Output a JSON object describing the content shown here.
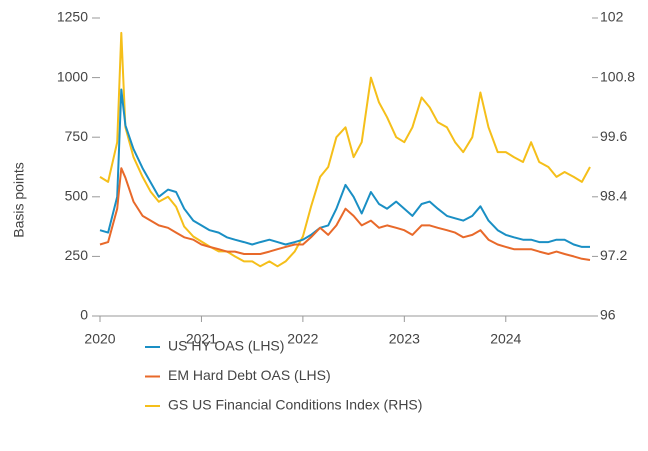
{
  "chart_data": {
    "type": "line",
    "ylabel": "Basis points",
    "x": [
      2020.0,
      2020.08,
      2020.17,
      2020.21,
      2020.25,
      2020.33,
      2020.42,
      2020.5,
      2020.58,
      2020.67,
      2020.75,
      2020.83,
      2020.92,
      2021.0,
      2021.08,
      2021.17,
      2021.25,
      2021.33,
      2021.42,
      2021.5,
      2021.58,
      2021.67,
      2021.75,
      2021.83,
      2021.92,
      2022.0,
      2022.08,
      2022.17,
      2022.25,
      2022.33,
      2022.42,
      2022.5,
      2022.58,
      2022.67,
      2022.75,
      2022.83,
      2022.92,
      2023.0,
      2023.08,
      2023.17,
      2023.25,
      2023.33,
      2023.42,
      2023.5,
      2023.58,
      2023.67,
      2023.75,
      2023.83,
      2023.92,
      2024.0,
      2024.08,
      2024.17,
      2024.25,
      2024.33,
      2024.42,
      2024.5,
      2024.58,
      2024.67,
      2024.75,
      2024.83
    ],
    "series": [
      {
        "name": "US HY OAS (LHS)",
        "color": "#1a8fc4",
        "values": [
          360,
          350,
          500,
          950,
          800,
          700,
          620,
          560,
          500,
          530,
          520,
          450,
          400,
          380,
          360,
          350,
          330,
          320,
          310,
          300,
          310,
          320,
          310,
          300,
          310,
          320,
          340,
          370,
          380,
          450,
          550,
          500,
          430,
          520,
          470,
          450,
          480,
          450,
          420,
          470,
          480,
          450,
          420,
          410,
          400,
          420,
          460,
          400,
          360,
          340,
          330,
          320,
          320,
          310,
          310,
          320,
          320,
          300,
          290,
          290
        ]
      },
      {
        "name": "EM Hard Debt OAS (LHS)",
        "color": "#e8692a",
        "values": [
          300,
          310,
          450,
          620,
          580,
          480,
          420,
          400,
          380,
          370,
          350,
          330,
          320,
          300,
          290,
          280,
          270,
          270,
          260,
          260,
          260,
          270,
          280,
          290,
          300,
          300,
          330,
          370,
          340,
          380,
          450,
          420,
          380,
          400,
          370,
          380,
          370,
          360,
          340,
          380,
          380,
          370,
          360,
          350,
          330,
          340,
          360,
          320,
          300,
          290,
          280,
          280,
          280,
          270,
          260,
          270,
          260,
          250,
          240,
          235
        ]
      },
      {
        "name": "GS US Financial Conditions Index (RHS)",
        "color": "#f5bf1a",
        "axis": "y2",
        "values": [
          98.8,
          98.7,
          99.5,
          101.7,
          99.8,
          99.2,
          98.8,
          98.5,
          98.3,
          98.4,
          98.2,
          97.8,
          97.6,
          97.5,
          97.4,
          97.3,
          97.3,
          97.2,
          97.1,
          97.1,
          97.0,
          97.1,
          97.0,
          97.1,
          97.3,
          97.6,
          98.2,
          98.8,
          99.0,
          99.6,
          99.8,
          99.2,
          99.5,
          100.8,
          100.3,
          100.0,
          99.6,
          99.5,
          99.8,
          100.4,
          100.2,
          99.9,
          99.8,
          99.5,
          99.3,
          99.6,
          100.5,
          99.8,
          99.3,
          99.3,
          99.2,
          99.1,
          99.5,
          99.1,
          99.0,
          98.8,
          98.9,
          98.8,
          98.7,
          99.0
        ]
      }
    ],
    "xlim": [
      2020,
      2024.85
    ],
    "xticks": [
      2020,
      2021,
      2022,
      2023,
      2024
    ],
    "ylim": [
      0,
      1250
    ],
    "yticks": [
      0,
      250,
      500,
      750,
      1000,
      1250
    ],
    "y2lim": [
      96,
      102
    ],
    "y2ticks": [
      96,
      97.2,
      98.4,
      99.6,
      100.8,
      102
    ]
  }
}
